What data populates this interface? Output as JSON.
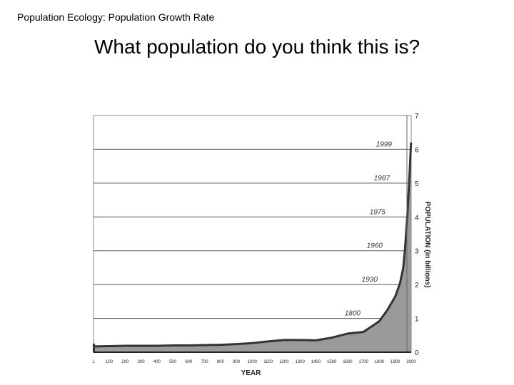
{
  "header": {
    "label": "Population Ecology:  Population Growth Rate"
  },
  "slide": {
    "title": "What population do you think this is?"
  },
  "chart_data": {
    "type": "area",
    "xlabel": "YEAR",
    "ylabel": "POPULATION (in billions)",
    "ylim": [
      0,
      7
    ],
    "yticks": [
      0,
      1,
      2,
      3,
      4,
      5,
      6,
      7
    ],
    "xlim": [
      1,
      2000
    ],
    "xticks": [
      1,
      100,
      200,
      300,
      400,
      500,
      600,
      700,
      800,
      900,
      1000,
      1100,
      1200,
      1300,
      1400,
      1500,
      1600,
      1700,
      1800,
      1900,
      2000
    ],
    "grid": "horizontal",
    "fill_color": "#9a9a9a",
    "line_color": "#333333",
    "series": [
      {
        "x": [
          1,
          100,
          200,
          300,
          400,
          500,
          600,
          700,
          800,
          900,
          1000,
          1100,
          1200,
          1300,
          1400,
          1500,
          1600,
          1700,
          1750,
          1800,
          1850,
          1900,
          1930,
          1950,
          1960,
          1975,
          1987,
          1999
        ],
        "values": [
          0.17,
          0.18,
          0.19,
          0.19,
          0.19,
          0.2,
          0.2,
          0.21,
          0.22,
          0.24,
          0.27,
          0.32,
          0.36,
          0.36,
          0.35,
          0.43,
          0.55,
          0.6,
          0.76,
          0.92,
          1.25,
          1.65,
          2.05,
          2.5,
          3.0,
          4.0,
          5.0,
          6.2
        ]
      }
    ],
    "annotations": [
      {
        "label": "1999",
        "y": 6
      },
      {
        "label": "1987",
        "y": 5
      },
      {
        "label": "1975",
        "y": 4
      },
      {
        "label": "1960",
        "y": 3
      },
      {
        "label": "1930",
        "y": 2
      },
      {
        "label": "1800",
        "y": 1
      }
    ]
  }
}
